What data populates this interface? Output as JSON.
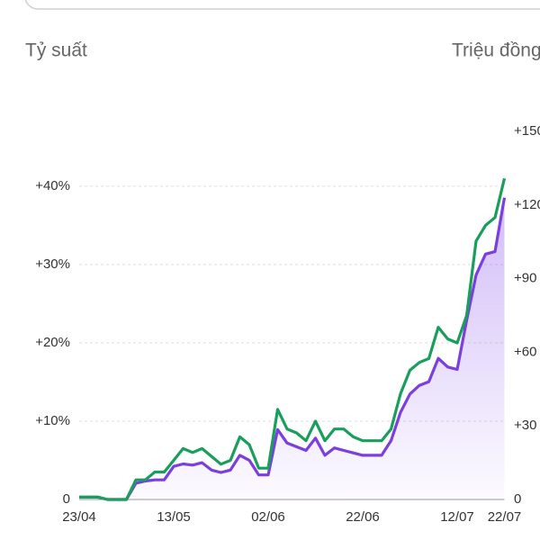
{
  "chart_data": {
    "type": "line",
    "y_title": "Tỷ suất",
    "y2_title": "Triệu đồng",
    "categories": [
      "23/04",
      "25/04",
      "27/04",
      "29/04",
      "01/05",
      "03/05",
      "05/05",
      "07/05",
      "09/05",
      "11/05",
      "13/05",
      "15/05",
      "17/05",
      "19/05",
      "21/05",
      "23/05",
      "25/05",
      "27/05",
      "29/05",
      "31/05",
      "02/06",
      "04/06",
      "06/06",
      "08/06",
      "10/06",
      "12/06",
      "14/06",
      "16/06",
      "18/06",
      "20/06",
      "22/06",
      "24/06",
      "26/06",
      "28/06",
      "30/06",
      "02/07",
      "04/07",
      "06/07",
      "08/07",
      "10/07",
      "12/07",
      "14/07",
      "16/07",
      "18/07",
      "20/07",
      "22/07"
    ],
    "series": [
      {
        "color": "#1a9e5c",
        "values": [
          0.3,
          0.3,
          0.3,
          0,
          0,
          0,
          2.5,
          2.5,
          3.5,
          3.5,
          5,
          6.5,
          6,
          6.5,
          5.5,
          4.5,
          5,
          8,
          7,
          4,
          4,
          11.5,
          9,
          8.5,
          7.5,
          10,
          7.5,
          9,
          9,
          8,
          7.5,
          7.5,
          7.5,
          9,
          13.5,
          16.5,
          17.5,
          18,
          22,
          20.5,
          20,
          23.5,
          33,
          35,
          36,
          41
        ]
      },
      {
        "color": "#7b3fe0",
        "axis": "y2",
        "area": true,
        "values": [
          1,
          1,
          1,
          0,
          0,
          0,
          6.6,
          7.5,
          8,
          8,
          13.5,
          14.5,
          14,
          15,
          12,
          11,
          12,
          18,
          16,
          10,
          10,
          28.5,
          23,
          21.5,
          20,
          25,
          18,
          21,
          20,
          19,
          18,
          18,
          18,
          24,
          35.5,
          43,
          46.5,
          48,
          57.5,
          54,
          53,
          73,
          91.5,
          100,
          101,
          123
        ]
      }
    ],
    "ylim": [
      0,
      47
    ],
    "yticks": [
      0,
      {
        "value": 10,
        "label": "+10%"
      },
      {
        "value": 20,
        "label": "+20%"
      },
      {
        "value": 30,
        "label": "+30%"
      },
      {
        "value": 40,
        "label": "+40%"
      }
    ],
    "y2lim": [
      0,
      150
    ],
    "y2ticks": [
      0,
      {
        "value": 30,
        "label": "+30"
      },
      {
        "value": 60,
        "label": "+60"
      },
      {
        "value": 90,
        "label": "+90"
      },
      {
        "value": 120,
        "label": "+120"
      },
      {
        "value": 150,
        "label": "+150"
      }
    ],
    "grid": true
  }
}
